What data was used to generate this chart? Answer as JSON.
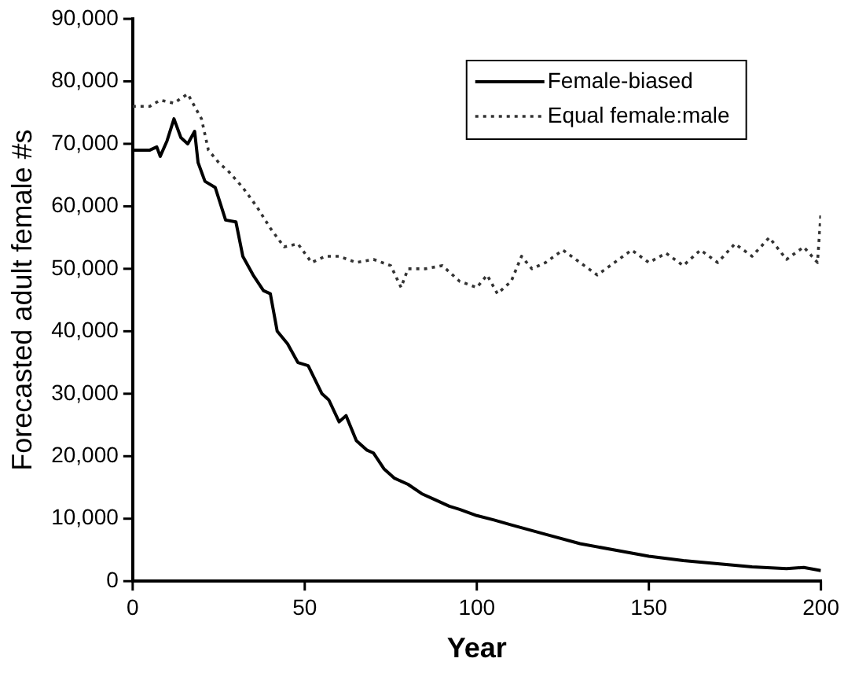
{
  "chart_data": {
    "type": "line",
    "xlabel": "Year",
    "ylabel": "Forecasted adult female #s",
    "xlim": [
      0,
      200
    ],
    "xticks": [
      0,
      50,
      100,
      150,
      200
    ],
    "ylim": [
      0,
      90000
    ],
    "yticks": [
      0,
      {
        "value": 10000,
        "label": "10,000"
      },
      {
        "value": 20000,
        "label": "20,000"
      },
      {
        "value": 30000,
        "label": "30,000"
      },
      {
        "value": 40000,
        "label": "40,000"
      },
      {
        "value": 50000,
        "label": "50,000"
      },
      {
        "value": 60000,
        "label": "60,000"
      },
      {
        "value": 70000,
        "label": "70,000"
      },
      {
        "value": 80000,
        "label": "80,000"
      },
      {
        "value": 90000,
        "label": "90,000"
      }
    ],
    "grid": false,
    "legend": "top right",
    "marker": "none",
    "series": [
      {
        "name": "Female-biased",
        "color": "#000000",
        "line_style": "solid",
        "x": [
          0,
          5,
          7,
          8,
          10,
          12,
          14,
          16,
          18,
          19,
          21,
          24,
          27,
          30,
          32,
          35,
          38,
          40,
          42,
          45,
          48,
          51,
          55,
          57,
          60,
          62,
          65,
          68,
          70,
          73,
          76,
          80,
          84,
          88,
          92,
          95,
          100,
          105,
          110,
          120,
          130,
          140,
          150,
          160,
          170,
          180,
          190,
          195,
          200
        ],
        "values": [
          69000,
          69000,
          69500,
          68000,
          70500,
          74000,
          71000,
          70000,
          72000,
          67000,
          64000,
          63000,
          57800,
          57500,
          52000,
          49000,
          46500,
          46000,
          40000,
          38000,
          35000,
          34500,
          30000,
          29000,
          25500,
          26500,
          22500,
          21000,
          20500,
          18000,
          16500,
          15500,
          14000,
          13000,
          12000,
          11500,
          10500,
          9800,
          9000,
          7500,
          6000,
          5000,
          4000,
          3300,
          2800,
          2300,
          2000,
          2200,
          1700
        ]
      },
      {
        "name": "Equal female:male",
        "color": "#333333",
        "line_style": "dotted",
        "x": [
          0,
          5,
          8,
          12,
          16,
          18,
          20,
          22,
          25,
          28,
          32,
          36,
          40,
          44,
          48,
          52,
          56,
          60,
          65,
          70,
          75,
          78,
          80,
          85,
          90,
          95,
          100,
          103,
          106,
          110,
          113,
          116,
          120,
          125,
          130,
          135,
          140,
          145,
          150,
          155,
          160,
          165,
          170,
          175,
          180,
          185,
          190,
          195,
          199,
          200
        ],
        "values": [
          76000,
          76000,
          77000,
          76500,
          78000,
          76000,
          74000,
          69000,
          67000,
          65500,
          63000,
          60000,
          56500,
          53500,
          54000,
          51000,
          52000,
          52000,
          51000,
          51500,
          50500,
          47000,
          50000,
          50000,
          50500,
          48000,
          47000,
          49000,
          46000,
          48000,
          52000,
          50000,
          51000,
          53000,
          51000,
          49000,
          51000,
          53000,
          51000,
          52500,
          50500,
          53000,
          51000,
          54000,
          52000,
          55000,
          51500,
          53500,
          51000,
          59000
        ]
      }
    ]
  }
}
